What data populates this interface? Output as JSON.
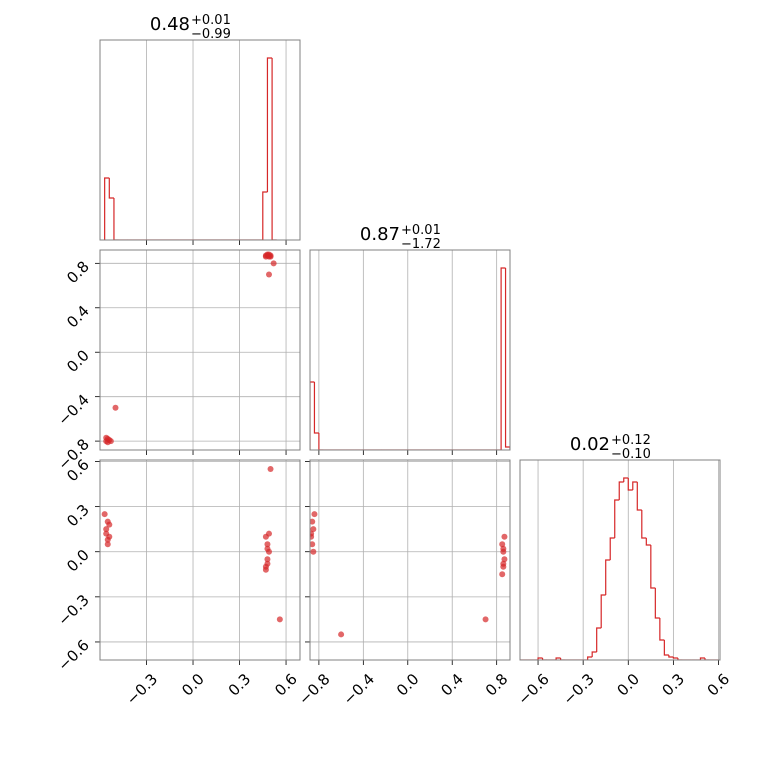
{
  "chart_data": [
    {
      "type": "histogram",
      "title": {
        "value": "0.48",
        "plus": "+0.01",
        "minus": "−0.99"
      },
      "color": "#d62728",
      "grid": true,
      "xtick_labels": false,
      "xlim": [
        -0.6,
        0.69
      ],
      "ylim": [
        0,
        200
      ],
      "xticks": [
        -0.3,
        0,
        0.3,
        0.6
      ],
      "bins": [
        -0.57,
        -0.54,
        -0.51,
        -0.48,
        -0.45,
        -0.42,
        -0.39,
        -0.36,
        -0.33,
        -0.3,
        -0.27,
        -0.24,
        -0.21,
        -0.18,
        -0.15,
        -0.12,
        -0.09,
        -0.06,
        -0.03,
        0,
        0.03,
        0.06,
        0.09,
        0.12,
        0.15,
        0.18,
        0.21,
        0.24,
        0.27,
        0.3,
        0.33,
        0.36,
        0.39,
        0.42,
        0.45,
        0.48,
        0.51,
        0.54
      ],
      "values": [
        62,
        42,
        0,
        0,
        0,
        0,
        0,
        0,
        0,
        0,
        0,
        0,
        0,
        0,
        0,
        0,
        0,
        0,
        0,
        0,
        0,
        0,
        0,
        0,
        0,
        0,
        0,
        0,
        0,
        0,
        0,
        0,
        0,
        0,
        48,
        182,
        0
      ]
    },
    {
      "type": "scatter",
      "color": "#d62728",
      "grid": true,
      "xtick_labels": false,
      "ytick_labels": true,
      "xlim": [
        -0.6,
        0.69
      ],
      "ylim": [
        -0.88,
        0.92
      ],
      "xticks": [
        -0.3,
        0,
        0.3,
        0.6
      ],
      "yticks": [
        0.8,
        0.4,
        {
          "value": 0,
          "label": "0.0"
        },
        {
          "value": -0.4,
          "label": "−0.4"
        },
        {
          "value": -0.8,
          "label": "−0.8"
        }
      ],
      "x": [
        0.47,
        0.48,
        0.49,
        0.5,
        0.47,
        0.49,
        0.48,
        0.5,
        0.49,
        -0.55,
        -0.56,
        -0.54,
        -0.55,
        -0.53,
        -0.56,
        0.52,
        -0.5
      ],
      "y": [
        0.87,
        0.88,
        0.86,
        0.87,
        0.86,
        0.88,
        0.87,
        0.86,
        0.7,
        -0.78,
        -0.8,
        -0.79,
        -0.81,
        -0.8,
        -0.77,
        0.8,
        -0.5
      ]
    },
    {
      "type": "histogram",
      "title": {
        "value": "0.87",
        "plus": "+0.01",
        "minus": "−1.72"
      },
      "color": "#d62728",
      "grid": true,
      "xtick_labels": false,
      "xlim": [
        -0.88,
        0.92
      ],
      "ylim": [
        0,
        200
      ],
      "xticks": [
        -0.8,
        -0.4,
        0,
        0.4,
        0.8
      ],
      "bins": [
        -0.88,
        -0.84,
        -0.8,
        -0.76,
        -0.72,
        -0.68,
        -0.64,
        -0.6,
        -0.56,
        -0.52,
        -0.48,
        -0.44,
        -0.4,
        -0.36,
        -0.32,
        -0.28,
        -0.24,
        -0.2,
        -0.16,
        -0.12,
        -0.08,
        -0.04,
        0,
        0.04,
        0.08,
        0.12,
        0.16,
        0.2,
        0.24,
        0.28,
        0.32,
        0.36,
        0.4,
        0.44,
        0.48,
        0.52,
        0.56,
        0.6,
        0.64,
        0.68,
        0.72,
        0.76,
        0.8,
        0.84,
        0.88,
        0.92
      ],
      "values": [
        68,
        17,
        0,
        0,
        0,
        0,
        0,
        0,
        0,
        0,
        0,
        0,
        0,
        0,
        0,
        0,
        0,
        0,
        0,
        0,
        0,
        0,
        0,
        0,
        0,
        0,
        0,
        0,
        0,
        0,
        0,
        0,
        0,
        0,
        0,
        0,
        0,
        0,
        0,
        0,
        0,
        0,
        0,
        182,
        3
      ]
    },
    {
      "type": "scatter",
      "color": "#d62728",
      "grid": true,
      "xtick_labels": true,
      "ytick_labels": true,
      "xlim": [
        -0.6,
        0.69
      ],
      "ylim": [
        -0.72,
        0.61
      ],
      "xticks": [
        {
          "value": -0.3,
          "label": "−0.3"
        },
        {
          "value": 0,
          "label": "0.0"
        },
        0.3,
        0.6
      ],
      "yticks": [
        0.6,
        0.3,
        {
          "value": 0,
          "label": "0.0"
        },
        {
          "value": -0.3,
          "label": "−0.3"
        },
        {
          "value": -0.6,
          "label": "−0.6"
        }
      ],
      "x": [
        -0.55,
        -0.56,
        -0.54,
        -0.55,
        -0.56,
        -0.54,
        -0.55,
        -0.57,
        0.47,
        0.48,
        0.49,
        0.48,
        0.47,
        0.49,
        0.48,
        0.48,
        0.47,
        0.5,
        0.56
      ],
      "y": [
        0.2,
        0.15,
        0.1,
        0.05,
        0.12,
        0.18,
        0.08,
        0.25,
        -0.1,
        -0.05,
        0.0,
        0.05,
        0.1,
        0.12,
        -0.08,
        0.02,
        -0.12,
        0.55,
        -0.45
      ]
    },
    {
      "type": "scatter",
      "color": "#d62728",
      "grid": true,
      "xtick_labels": true,
      "ytick_labels": false,
      "xlim": [
        -0.88,
        0.92
      ],
      "ylim": [
        -0.72,
        0.61
      ],
      "xticks": [
        {
          "value": -0.8,
          "label": "−0.8"
        },
        {
          "value": -0.4,
          "label": "−0.4"
        },
        {
          "value": 0,
          "label": "0.0"
        },
        0.4,
        0.8
      ],
      "yticks": [
        0.6,
        0.3,
        0,
        -0.3,
        -0.6
      ],
      "x": [
        -0.86,
        -0.85,
        -0.87,
        -0.86,
        -0.85,
        -0.87,
        -0.84,
        -0.6,
        0.85,
        0.86,
        0.87,
        0.86,
        0.85,
        0.87,
        0.86,
        0.86,
        0.7
      ],
      "y": [
        0.2,
        0.15,
        0.1,
        0.05,
        0.0,
        0.12,
        0.25,
        -0.55,
        -0.15,
        -0.1,
        -0.05,
        0.0,
        0.05,
        0.1,
        0.02,
        -0.08,
        -0.45
      ]
    },
    {
      "type": "histogram",
      "title": {
        "value": "0.02",
        "plus": "+0.12",
        "minus": "−0.10"
      },
      "color": "#d62728",
      "grid": true,
      "xtick_labels": true,
      "xlim": [
        -0.72,
        0.61
      ],
      "ylim": [
        0,
        200
      ],
      "xticks": [
        {
          "value": -0.6,
          "label": "−0.6"
        },
        {
          "value": -0.3,
          "label": "−0.3"
        },
        {
          "value": 0,
          "label": "0.0"
        },
        0.3,
        0.6
      ],
      "bins": [
        -0.72,
        -0.69,
        -0.66,
        -0.63,
        -0.6,
        -0.57,
        -0.54,
        -0.51,
        -0.48,
        -0.45,
        -0.42,
        -0.39,
        -0.36,
        -0.33,
        -0.3,
        -0.27,
        -0.24,
        -0.21,
        -0.18,
        -0.15,
        -0.12,
        -0.09,
        -0.06,
        -0.03,
        0,
        0.03,
        0.06,
        0.09,
        0.12,
        0.15,
        0.18,
        0.21,
        0.24,
        0.27,
        0.3,
        0.33,
        0.36,
        0.39,
        0.42,
        0.45,
        0.48,
        0.51,
        0.54,
        0.57,
        0.6
      ],
      "values": [
        0,
        0,
        0,
        0,
        2,
        0,
        0,
        0,
        2,
        0,
        0,
        0,
        0,
        0,
        0,
        3,
        8,
        32,
        65,
        100,
        122,
        160,
        178,
        182,
        170,
        178,
        150,
        122,
        115,
        72,
        42,
        20,
        5,
        3,
        2,
        0,
        0,
        0,
        0,
        0,
        2,
        0,
        0,
        0
      ]
    }
  ]
}
